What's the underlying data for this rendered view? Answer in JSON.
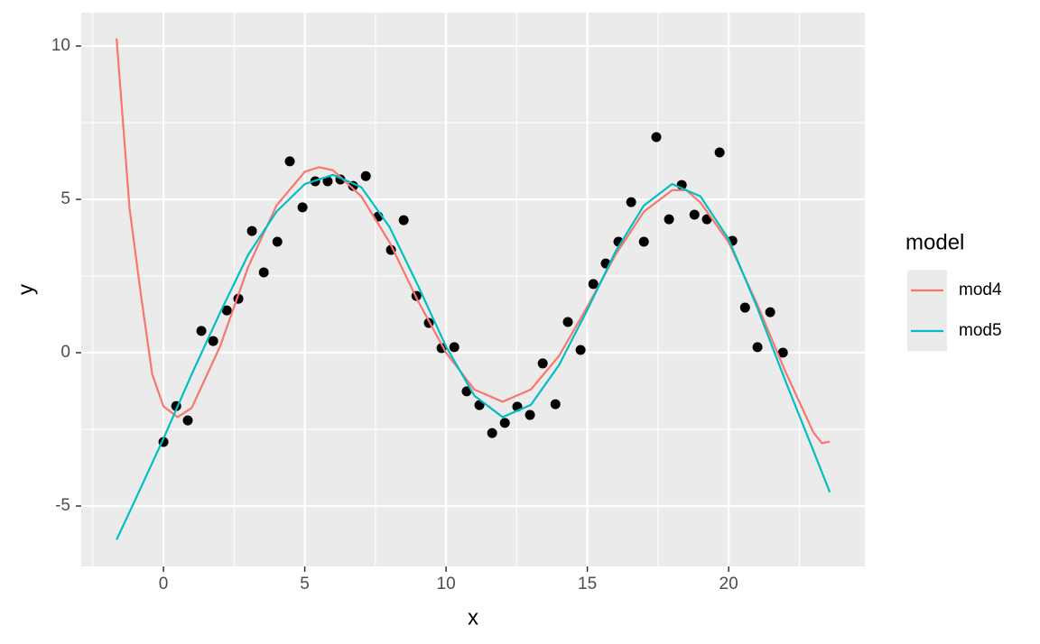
{
  "chart_data": {
    "type": "scatter-line",
    "x_label": "x",
    "y_label": "y",
    "legend_title": "model",
    "xlim": [
      -2.91,
      24.82
    ],
    "ylim": [
      -6.97,
      11.09
    ],
    "xticks": [
      0,
      5,
      10,
      15,
      20
    ],
    "yticks": [
      -5,
      0,
      5,
      10
    ],
    "grid": true,
    "points": {
      "color": "#000000",
      "x": [
        0,
        0.45,
        0.86,
        1.34,
        1.76,
        2.24,
        2.65,
        3.13,
        3.55,
        4.03,
        4.47,
        4.92,
        5.37,
        5.81,
        6.26,
        6.71,
        7.16,
        7.6,
        8.05,
        8.5,
        8.95,
        9.39,
        9.84,
        10.29,
        10.73,
        11.18,
        11.63,
        12.08,
        12.52,
        12.97,
        13.42,
        13.87,
        14.31,
        14.76,
        15.21,
        15.65,
        16.1,
        16.55,
        17.0,
        17.44,
        17.89,
        18.34,
        18.79,
        19.23,
        19.68,
        20.13,
        20.58,
        21.02,
        21.47,
        21.92
      ],
      "values": [
        -2.91,
        -1.74,
        -2.21,
        0.71,
        0.38,
        1.38,
        1.76,
        3.97,
        2.62,
        3.62,
        6.24,
        4.74,
        5.59,
        5.59,
        5.65,
        5.44,
        5.76,
        4.44,
        3.35,
        4.32,
        1.85,
        0.97,
        0.15,
        0.18,
        -1.26,
        -1.71,
        -2.62,
        -2.29,
        -1.76,
        -2.03,
        -0.35,
        -1.68,
        1.0,
        0.09,
        2.24,
        2.91,
        3.62,
        4.91,
        3.62,
        7.03,
        4.35,
        5.47,
        4.5,
        4.35,
        6.53,
        3.65,
        1.47,
        0.18,
        1.32,
        0
      ]
    },
    "series": [
      {
        "name": "mod4",
        "color": "#F8766D",
        "x": [
          -1.66,
          -1.2,
          -0.8,
          -0.4,
          0,
          0.5,
          1,
          2,
          3,
          4,
          5,
          5.5,
          6,
          7,
          8,
          9,
          10,
          11,
          12,
          13,
          14,
          15,
          16,
          17,
          18,
          18.5,
          19,
          20,
          21,
          22,
          23,
          23.3,
          23.58
        ],
        "values": [
          10.25,
          4.7,
          1.9,
          -0.7,
          -1.75,
          -2.1,
          -1.8,
          0.2,
          2.8,
          4.8,
          5.9,
          6.05,
          5.95,
          5.1,
          3.6,
          1.7,
          0.0,
          -1.2,
          -1.6,
          -1.2,
          -0.1,
          1.5,
          3.2,
          4.6,
          5.3,
          5.3,
          4.9,
          3.6,
          1.6,
          -0.6,
          -2.6,
          -2.95,
          -2.9
        ]
      },
      {
        "name": "mod5",
        "color": "#00BFC4",
        "x": [
          -1.66,
          -1,
          0,
          1,
          2,
          3,
          4,
          5,
          6,
          7,
          8,
          9,
          10,
          11,
          12,
          13,
          14,
          15,
          16,
          17,
          18,
          19,
          20,
          21,
          22,
          23,
          23.58
        ],
        "values": [
          -6.1,
          -4.8,
          -2.8,
          -0.7,
          1.3,
          3.2,
          4.6,
          5.5,
          5.8,
          5.4,
          4.1,
          2.2,
          0.2,
          -1.4,
          -2.1,
          -1.7,
          -0.4,
          1.4,
          3.3,
          4.8,
          5.5,
          5.1,
          3.7,
          1.5,
          -0.9,
          -3.2,
          -4.55
        ]
      }
    ]
  }
}
